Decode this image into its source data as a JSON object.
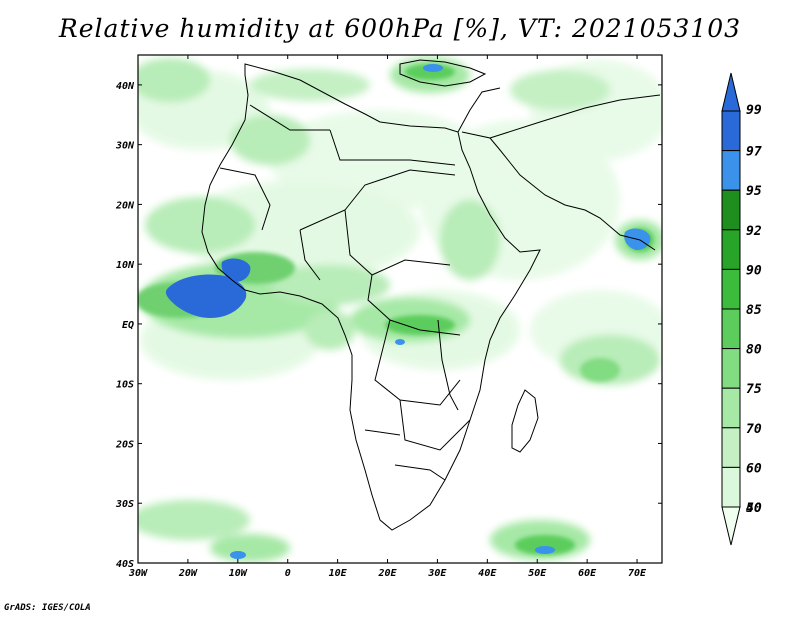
{
  "title": "Relative humidity at 600hPa [%], VT: 2021053103",
  "credit": "GrADS: IGES/COLA",
  "map": {
    "lon_labels": [
      "30W",
      "20W",
      "10W",
      "0",
      "10E",
      "20E",
      "30E",
      "40E",
      "50E",
      "60E",
      "70E"
    ],
    "lat_labels": [
      "40N",
      "30N",
      "20N",
      "10N",
      "EQ",
      "10S",
      "20S",
      "30S",
      "40S"
    ],
    "lon_range": [
      -30,
      75
    ],
    "lat_range": [
      -40,
      45
    ]
  },
  "colorbar": {
    "levels": [
      "99",
      "97",
      "95",
      "92",
      "90",
      "85",
      "80",
      "75",
      "70",
      "60",
      "50",
      "40"
    ],
    "colors": [
      "#2a6ad8",
      "#2a6ad8",
      "#3a92ea",
      "#1e8e1e",
      "#28a528",
      "#3cbc3c",
      "#5ccd5c",
      "#82dc82",
      "#a6e8a6",
      "#c4f0c4",
      "#dcf8dc",
      "#f0fff0"
    ]
  }
}
